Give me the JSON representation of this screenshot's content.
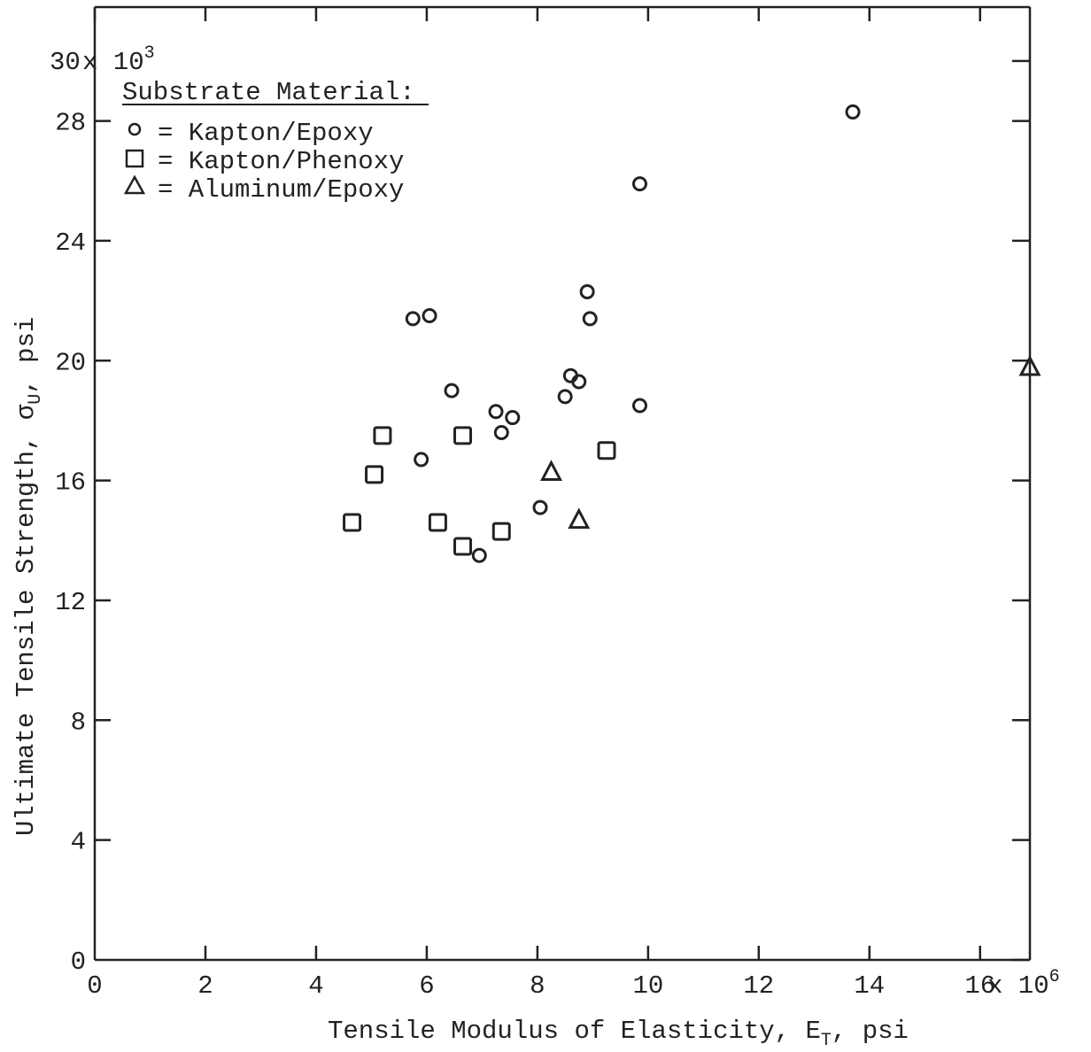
{
  "chart_data": {
    "type": "scatter",
    "xlabel": "Tensile Modulus of Elasticity, E",
    "xlabel_sub": "T",
    "xlabel_tail": ", psi",
    "ylabel": "Ultimate Tensile Strength, σ",
    "ylabel_sub": "U",
    "ylabel_tail": ", psi",
    "xlim": [
      0,
      16.9
    ],
    "ylim": [
      0,
      31.8
    ],
    "x_ticks": [
      0,
      2,
      4,
      6,
      8,
      10,
      12,
      14,
      16
    ],
    "x_tick_labels": [
      "0",
      "2",
      "4",
      "6",
      "8",
      "10",
      "12",
      "14",
      "16"
    ],
    "x_multiplier": "x 10",
    "x_multiplier_exp": "6",
    "y_ticks": [
      0,
      4,
      8,
      12,
      16,
      20,
      24,
      28,
      30
    ],
    "y_tick_labels": [
      "0",
      "4",
      "8",
      "12",
      "16",
      "20",
      "24",
      "28",
      "30"
    ],
    "y_multiplier": "x 10",
    "y_multiplier_exp": "3",
    "legend": {
      "title": "Substrate Material:",
      "entries": [
        "= Kapton/Epoxy",
        "= Kapton/Phenoxy",
        "= Aluminum/Epoxy"
      ],
      "placement": "top-left"
    },
    "grid": false,
    "series": [
      {
        "name": "Kapton/Epoxy",
        "marker": "circle",
        "points": [
          [
            5.75,
            21.4
          ],
          [
            6.05,
            21.5
          ],
          [
            6.45,
            19.0
          ],
          [
            5.9,
            16.7
          ],
          [
            7.25,
            18.3
          ],
          [
            7.35,
            17.6
          ],
          [
            7.55,
            18.1
          ],
          [
            6.95,
            13.5
          ],
          [
            8.05,
            15.1
          ],
          [
            8.5,
            18.8
          ],
          [
            8.6,
            19.5
          ],
          [
            8.75,
            19.3
          ],
          [
            8.9,
            22.3
          ],
          [
            8.95,
            21.4
          ],
          [
            9.85,
            25.9
          ],
          [
            9.85,
            18.5
          ],
          [
            13.7,
            28.3
          ]
        ]
      },
      {
        "name": "Kapton/Phenoxy",
        "marker": "square",
        "points": [
          [
            4.65,
            14.6
          ],
          [
            5.05,
            16.2
          ],
          [
            5.2,
            17.5
          ],
          [
            6.2,
            14.6
          ],
          [
            6.65,
            17.5
          ],
          [
            6.65,
            13.8
          ],
          [
            7.35,
            14.3
          ],
          [
            9.25,
            17.0
          ]
        ]
      },
      {
        "name": "Aluminum/Epoxy",
        "marker": "triangle",
        "points": [
          [
            8.25,
            16.3
          ],
          [
            8.75,
            14.7
          ],
          [
            16.9,
            19.8
          ]
        ]
      }
    ]
  }
}
